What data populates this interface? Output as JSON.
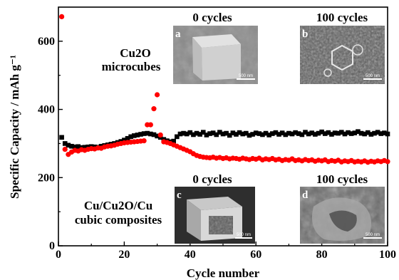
{
  "chart_data": {
    "type": "scatter",
    "title": "",
    "xlabel": "Cycle number",
    "ylabel": "Specific Capacity / mAh g⁻¹",
    "xlim": [
      0,
      100
    ],
    "ylim": [
      0,
      700
    ],
    "x_ticks": [
      "0",
      "20",
      "40",
      "60",
      "80",
      "100"
    ],
    "y_ticks": [
      "0",
      "200",
      "400",
      "600"
    ],
    "grid": false,
    "series": [
      {
        "name": "Cu/Cu2O/Cu cubic composites",
        "color": "#000000",
        "marker": "square",
        "x": [
          1,
          2,
          3,
          4,
          5,
          6,
          7,
          8,
          9,
          10,
          11,
          12,
          13,
          14,
          15,
          16,
          17,
          18,
          19,
          20,
          21,
          22,
          23,
          24,
          25,
          26,
          27,
          28,
          29,
          30,
          31,
          32,
          33,
          34,
          35,
          36,
          37,
          38,
          39,
          40,
          41,
          42,
          43,
          44,
          45,
          46,
          47,
          48,
          49,
          50,
          51,
          52,
          53,
          54,
          55,
          56,
          57,
          58,
          59,
          60,
          61,
          62,
          63,
          64,
          65,
          66,
          67,
          68,
          69,
          70,
          71,
          72,
          73,
          74,
          75,
          76,
          77,
          78,
          79,
          80,
          81,
          82,
          83,
          84,
          85,
          86,
          87,
          88,
          89,
          90,
          91,
          92,
          93,
          94,
          95,
          96,
          97,
          98,
          99,
          100
        ],
        "y": [
          318,
          300,
          295,
          292,
          290,
          291,
          288,
          289,
          290,
          291,
          290,
          289,
          292,
          294,
          296,
          298,
          300,
          303,
          306,
          310,
          315,
          320,
          323,
          325,
          327,
          329,
          330,
          328,
          326,
          322,
          318,
          312,
          308,
          305,
          307,
          320,
          328,
          330,
          328,
          332,
          326,
          330,
          327,
          333,
          325,
          329,
          331,
          326,
          333,
          328,
          330,
          324,
          331,
          327,
          332,
          328,
          330,
          324,
          327,
          331,
          329,
          326,
          330,
          325,
          329,
          332,
          327,
          331,
          326,
          330,
          328,
          332,
          329,
          326,
          333,
          328,
          331,
          327,
          330,
          334,
          329,
          332,
          327,
          331,
          330,
          333,
          328,
          332,
          329,
          331,
          335,
          330,
          328,
          332,
          327,
          330,
          333,
          329,
          331,
          328
        ]
      },
      {
        "name": "Cu2O microcubes",
        "color": "#ff0000",
        "marker": "circle",
        "x": [
          1,
          2,
          3,
          4,
          5,
          6,
          7,
          8,
          9,
          10,
          11,
          12,
          13,
          14,
          15,
          16,
          17,
          18,
          19,
          20,
          21,
          22,
          23,
          24,
          25,
          26,
          27,
          28,
          29,
          30,
          31,
          32,
          33,
          34,
          35,
          36,
          37,
          38,
          39,
          40,
          41,
          42,
          43,
          44,
          45,
          46,
          47,
          48,
          49,
          50,
          51,
          52,
          53,
          54,
          55,
          56,
          57,
          58,
          59,
          60,
          61,
          62,
          63,
          64,
          65,
          66,
          67,
          68,
          69,
          70,
          71,
          72,
          73,
          74,
          75,
          76,
          77,
          78,
          79,
          80,
          81,
          82,
          83,
          84,
          85,
          86,
          87,
          88,
          89,
          90,
          91,
          92,
          93,
          94,
          95,
          96,
          97,
          98,
          99,
          100
        ],
        "y": [
          672,
          283,
          268,
          275,
          280,
          278,
          282,
          280,
          283,
          285,
          284,
          287,
          286,
          290,
          292,
          293,
          295,
          298,
          300,
          302,
          303,
          304,
          305,
          306,
          307,
          308,
          355,
          355,
          402,
          443,
          325,
          305,
          303,
          300,
          296,
          292,
          288,
          284,
          280,
          276,
          270,
          265,
          262,
          260,
          259,
          258,
          260,
          257,
          259,
          256,
          258,
          255,
          257,
          256,
          254,
          257,
          255,
          253,
          256,
          254,
          257,
          252,
          255,
          253,
          256,
          252,
          254,
          250,
          253,
          251,
          255,
          250,
          252,
          249,
          253,
          250,
          252,
          248,
          251,
          249,
          252,
          247,
          250,
          248,
          251,
          246,
          249,
          247,
          250,
          246,
          248,
          246,
          249,
          245,
          248,
          246,
          249,
          247,
          250,
          247
        ]
      }
    ],
    "annotations": [
      "Cu2O",
      "microcubes",
      "Cu/Cu2O/Cu",
      "cubic composites",
      "0 cycles",
      "100 cycles",
      "0 cycles",
      "100 cycles"
    ],
    "inset_letters": [
      "a",
      "b",
      "c",
      "d"
    ],
    "scale_bar_label": "500 nm"
  }
}
